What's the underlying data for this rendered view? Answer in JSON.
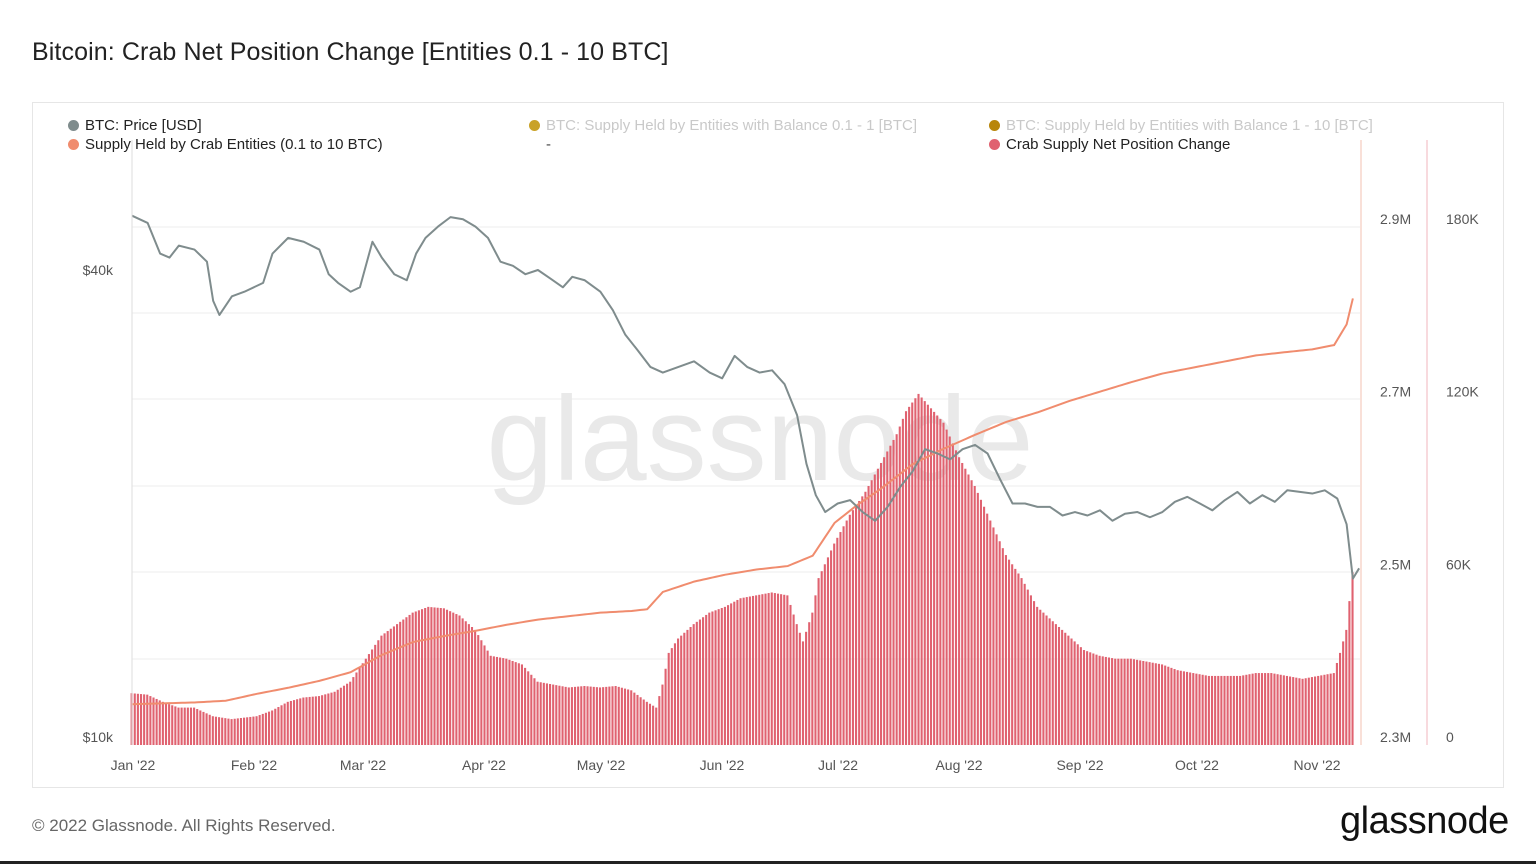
{
  "title": "Bitcoin: Crab Net Position Change [Entities 0.1 - 10 BTC]",
  "legend": [
    {
      "label": "BTC: Price [USD]",
      "color": "#7f8c8d",
      "faded": false
    },
    {
      "label": "BTC: Supply Held by Entities with Balance 0.1 - 1 [BTC]",
      "color": "#c9a227",
      "faded": true
    },
    {
      "label": "BTC: Supply Held by Entities with Balance 1 - 10 [BTC]",
      "color": "#b8860b",
      "faded": true
    },
    {
      "label": "Supply Held by Crab Entities (0.1 to 10 BTC)",
      "color": "#f08c6e",
      "faded": false
    },
    {
      "label": "Crab Supply Net Position Change",
      "color": "#e06270",
      "faded": false
    }
  ],
  "legend_dash": "-",
  "watermark": "glassnode",
  "footer": {
    "copyright": "© 2022 Glassnode. All Rights Reserved.",
    "logo": "glassnode"
  },
  "colors": {
    "price": "#7f8c8d",
    "supply": "#f08c6e",
    "bars": "#e06270",
    "grid": "#eeeeee"
  },
  "chart_data": {
    "type": "line",
    "x_tick_labels": [
      "Jan '22",
      "Feb '22",
      "Mar '22",
      "Apr '22",
      "May '22",
      "Jun '22",
      "Jul '22",
      "Aug '22",
      "Sep '22",
      "Oct '22",
      "Nov '22"
    ],
    "left_axis": {
      "scale": "log",
      "ticks": [
        "$10k",
        "$40k"
      ],
      "tick_values": [
        10000,
        40000
      ]
    },
    "right_axis_1": {
      "ticks": [
        "2.9M",
        "2.7M",
        "2.5M",
        "2.3M"
      ],
      "tick_values": [
        2900000,
        2700000,
        2500000,
        2300000
      ],
      "range": [
        2300000,
        2990000
      ]
    },
    "right_axis_2": {
      "ticks": [
        "180K",
        "120K",
        "60K",
        "0"
      ],
      "tick_values": [
        180000,
        120000,
        60000,
        0
      ],
      "range": [
        0,
        210000
      ]
    },
    "series": [
      {
        "name": "BTC: Price [USD]",
        "axis": "left",
        "points": [
          [
            0,
            47000
          ],
          [
            5,
            46000
          ],
          [
            9,
            42000
          ],
          [
            12,
            41500
          ],
          [
            15,
            43000
          ],
          [
            20,
            42500
          ],
          [
            24,
            41000
          ],
          [
            26,
            36500
          ],
          [
            28,
            35000
          ],
          [
            32,
            37000
          ],
          [
            36,
            37500
          ],
          [
            42,
            38500
          ],
          [
            45,
            42000
          ],
          [
            50,
            44000
          ],
          [
            55,
            43500
          ],
          [
            60,
            42500
          ],
          [
            63,
            39500
          ],
          [
            66,
            38500
          ],
          [
            70,
            37500
          ],
          [
            73,
            38000
          ],
          [
            77,
            43500
          ],
          [
            80,
            41500
          ],
          [
            84,
            39500
          ],
          [
            88,
            38800
          ],
          [
            91,
            42000
          ],
          [
            94,
            44000
          ],
          [
            98,
            45500
          ],
          [
            102,
            46800
          ],
          [
            106,
            46500
          ],
          [
            110,
            45500
          ],
          [
            114,
            44000
          ],
          [
            118,
            41000
          ],
          [
            122,
            40500
          ],
          [
            126,
            39500
          ],
          [
            130,
            40000
          ],
          [
            134,
            39000
          ],
          [
            138,
            38000
          ],
          [
            141,
            39200
          ],
          [
            145,
            38800
          ],
          [
            150,
            37500
          ],
          [
            154,
            35500
          ],
          [
            158,
            33000
          ],
          [
            162,
            31500
          ],
          [
            166,
            30000
          ],
          [
            170,
            29500
          ],
          [
            175,
            30000
          ],
          [
            180,
            30500
          ],
          [
            185,
            29500
          ],
          [
            189,
            29000
          ],
          [
            193,
            31000
          ],
          [
            197,
            30000
          ],
          [
            201,
            29500
          ],
          [
            205,
            29700
          ],
          [
            209,
            28500
          ],
          [
            213,
            26000
          ],
          [
            216,
            22500
          ],
          [
            219,
            20500
          ],
          [
            222,
            19500
          ],
          [
            226,
            20000
          ],
          [
            230,
            20200
          ],
          [
            234,
            19500
          ],
          [
            238,
            19000
          ],
          [
            242,
            19800
          ],
          [
            246,
            21000
          ],
          [
            250,
            22000
          ],
          [
            254,
            23500
          ],
          [
            258,
            23200
          ],
          [
            262,
            22800
          ],
          [
            266,
            23500
          ],
          [
            270,
            23800
          ],
          [
            274,
            23200
          ],
          [
            278,
            21500
          ],
          [
            282,
            20000
          ],
          [
            286,
            20000
          ],
          [
            290,
            19800
          ],
          [
            294,
            19800
          ],
          [
            298,
            19300
          ],
          [
            302,
            19500
          ],
          [
            306,
            19300
          ],
          [
            310,
            19600
          ],
          [
            314,
            19000
          ],
          [
            318,
            19400
          ],
          [
            322,
            19500
          ],
          [
            326,
            19200
          ],
          [
            330,
            19500
          ],
          [
            334,
            20100
          ],
          [
            338,
            20400
          ],
          [
            342,
            20000
          ],
          [
            346,
            19600
          ],
          [
            350,
            20200
          ],
          [
            354,
            20700
          ],
          [
            358,
            20000
          ],
          [
            362,
            20500
          ],
          [
            366,
            20100
          ],
          [
            370,
            20800
          ],
          [
            374,
            20700
          ],
          [
            378,
            20600
          ],
          [
            382,
            20800
          ],
          [
            386,
            20300
          ],
          [
            389,
            18800
          ],
          [
            391,
            16000
          ],
          [
            393,
            16500
          ]
        ]
      },
      {
        "name": "Supply Held by Crab Entities (0.1 to 10 BTC)",
        "axis": "right1",
        "points": [
          [
            0,
            2338000
          ],
          [
            20,
            2340000
          ],
          [
            30,
            2342000
          ],
          [
            40,
            2350000
          ],
          [
            50,
            2357000
          ],
          [
            60,
            2365000
          ],
          [
            70,
            2375000
          ],
          [
            80,
            2395000
          ],
          [
            90,
            2410000
          ],
          [
            100,
            2417000
          ],
          [
            110,
            2423000
          ],
          [
            120,
            2430000
          ],
          [
            130,
            2436000
          ],
          [
            140,
            2440000
          ],
          [
            150,
            2444000
          ],
          [
            160,
            2446000
          ],
          [
            165,
            2448000
          ],
          [
            170,
            2468000
          ],
          [
            180,
            2480000
          ],
          [
            190,
            2488000
          ],
          [
            200,
            2494000
          ],
          [
            210,
            2498000
          ],
          [
            218,
            2510000
          ],
          [
            225,
            2548000
          ],
          [
            232,
            2568000
          ],
          [
            240,
            2588000
          ],
          [
            250,
            2616000
          ],
          [
            260,
            2634000
          ],
          [
            270,
            2650000
          ],
          [
            280,
            2665000
          ],
          [
            290,
            2676000
          ],
          [
            300,
            2689000
          ],
          [
            310,
            2700000
          ],
          [
            320,
            2711000
          ],
          [
            330,
            2721000
          ],
          [
            340,
            2728000
          ],
          [
            350,
            2735000
          ],
          [
            360,
            2742000
          ],
          [
            370,
            2746000
          ],
          [
            378,
            2749000
          ],
          [
            385,
            2754000
          ],
          [
            389,
            2778000
          ],
          [
            391,
            2808000
          ]
        ]
      },
      {
        "name": "Crab Supply Net Position Change",
        "type": "bar",
        "axis": "right2",
        "points": [
          [
            0,
            18000
          ],
          [
            5,
            17500
          ],
          [
            10,
            15000
          ],
          [
            15,
            13000
          ],
          [
            20,
            13000
          ],
          [
            26,
            10000
          ],
          [
            32,
            9000
          ],
          [
            40,
            10000
          ],
          [
            45,
            12000
          ],
          [
            50,
            15000
          ],
          [
            55,
            16500
          ],
          [
            60,
            17000
          ],
          [
            65,
            18500
          ],
          [
            70,
            22000
          ],
          [
            75,
            30000
          ],
          [
            80,
            38000
          ],
          [
            85,
            42000
          ],
          [
            90,
            46000
          ],
          [
            95,
            48000
          ],
          [
            100,
            47500
          ],
          [
            105,
            45000
          ],
          [
            110,
            40000
          ],
          [
            115,
            31000
          ],
          [
            120,
            30000
          ],
          [
            125,
            28000
          ],
          [
            130,
            22000
          ],
          [
            135,
            21000
          ],
          [
            140,
            20000
          ],
          [
            145,
            20500
          ],
          [
            150,
            20000
          ],
          [
            155,
            20500
          ],
          [
            160,
            19000
          ],
          [
            165,
            15000
          ],
          [
            168,
            13000
          ],
          [
            170,
            21000
          ],
          [
            172,
            32000
          ],
          [
            175,
            37000
          ],
          [
            180,
            42000
          ],
          [
            185,
            46000
          ],
          [
            190,
            48000
          ],
          [
            195,
            51000
          ],
          [
            200,
            52000
          ],
          [
            205,
            53000
          ],
          [
            210,
            52000
          ],
          [
            213,
            42000
          ],
          [
            215,
            36000
          ],
          [
            218,
            46000
          ],
          [
            220,
            58000
          ],
          [
            225,
            70000
          ],
          [
            230,
            80000
          ],
          [
            235,
            88000
          ],
          [
            240,
            98000
          ],
          [
            245,
            108000
          ],
          [
            248,
            116000
          ],
          [
            252,
            122000
          ],
          [
            256,
            117000
          ],
          [
            260,
            112000
          ],
          [
            265,
            100000
          ],
          [
            270,
            90000
          ],
          [
            275,
            78000
          ],
          [
            280,
            66000
          ],
          [
            285,
            58000
          ],
          [
            290,
            48000
          ],
          [
            295,
            43000
          ],
          [
            300,
            38000
          ],
          [
            305,
            33000
          ],
          [
            310,
            31000
          ],
          [
            315,
            30000
          ],
          [
            320,
            30000
          ],
          [
            325,
            29000
          ],
          [
            330,
            28000
          ],
          [
            335,
            26000
          ],
          [
            340,
            25000
          ],
          [
            345,
            24000
          ],
          [
            350,
            24000
          ],
          [
            355,
            24000
          ],
          [
            360,
            25000
          ],
          [
            365,
            25000
          ],
          [
            370,
            24000
          ],
          [
            375,
            23000
          ],
          [
            380,
            24000
          ],
          [
            385,
            25000
          ],
          [
            387,
            32000
          ],
          [
            389,
            40000
          ],
          [
            391,
            60000
          ]
        ]
      }
    ]
  }
}
